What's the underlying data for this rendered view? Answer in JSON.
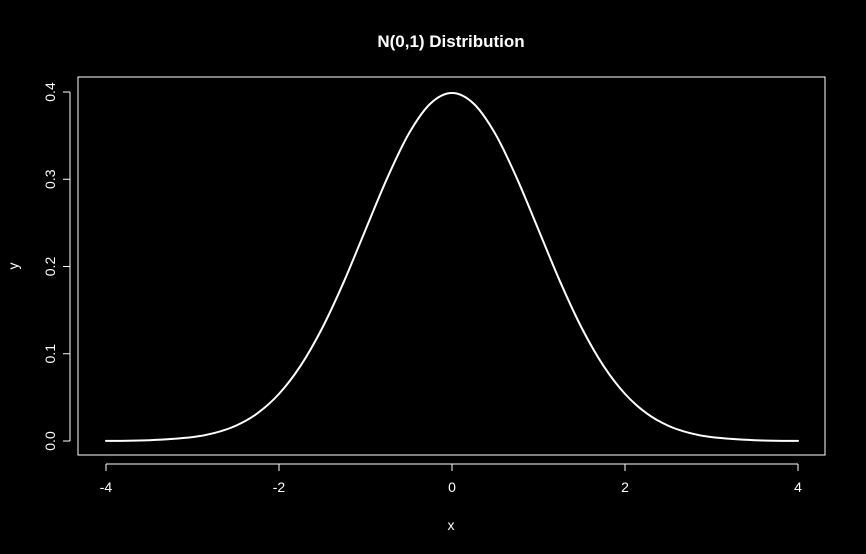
{
  "chart_data": {
    "type": "line",
    "title": "N(0,1) Distribution",
    "xlabel": "x",
    "ylabel": "y",
    "xlim": [
      -4,
      4
    ],
    "ylim": [
      0,
      0.4
    ],
    "x_ticks": [
      -4,
      -2,
      0,
      2,
      4
    ],
    "y_ticks": [
      0.0,
      0.1,
      0.2,
      0.3,
      0.4
    ],
    "x_tick_labels": [
      "-4",
      "-2",
      "0",
      "2",
      "4"
    ],
    "y_tick_labels": [
      "0.0",
      "0.1",
      "0.2",
      "0.3",
      "0.4"
    ],
    "grid": false,
    "series": [
      {
        "x": [
          -4.0,
          -3.5,
          -3.0,
          -2.75,
          -2.5,
          -2.25,
          -2.0,
          -1.75,
          -1.5,
          -1.25,
          -1.0,
          -0.75,
          -0.5,
          -0.25,
          0.0,
          0.25,
          0.5,
          0.75,
          1.0,
          1.25,
          1.5,
          1.75,
          2.0,
          2.25,
          2.5,
          2.75,
          3.0,
          3.5,
          4.0
        ],
        "values": [
          0.0001,
          0.0009,
          0.0044,
          0.0091,
          0.0175,
          0.0317,
          0.054,
          0.0863,
          0.1295,
          0.1826,
          0.242,
          0.3011,
          0.3521,
          0.3867,
          0.3989,
          0.3867,
          0.3521,
          0.3011,
          0.242,
          0.1826,
          0.1295,
          0.0863,
          0.054,
          0.0317,
          0.0175,
          0.0091,
          0.0044,
          0.0009,
          0.0001
        ]
      }
    ],
    "colors": {
      "background": "#000000",
      "foreground": "#ffffff",
      "line": "#ffffff"
    }
  }
}
